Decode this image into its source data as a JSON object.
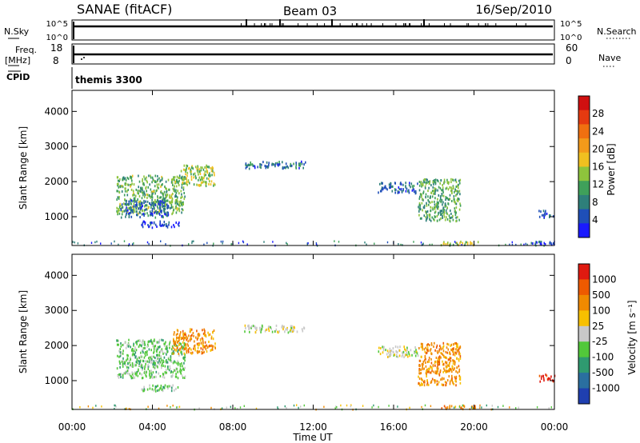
{
  "header": {
    "station": "SANAE (fitACF)",
    "beam": "Beam 03",
    "date": "16/Sep/2010"
  },
  "strips": {
    "nsky_label": "N.Sky",
    "nsky_ticks": [
      "10^5",
      "10^0"
    ],
    "nsearch_label": "N.Search",
    "nsearch_ticks": [
      "10^5",
      "10^0"
    ],
    "freq_label_line1": "Freq.",
    "freq_label_line2": "[MHz]",
    "freq_ticks": [
      "18",
      "8"
    ],
    "nave_label": "Nave",
    "nave_ticks": [
      "60",
      "0"
    ],
    "cpid_label": "CPID",
    "cpid_value": "themis 3300"
  },
  "colors": {
    "power_scale": [
      "#1a1aff",
      "#1f4fb8",
      "#2e7f7a",
      "#3fa05a",
      "#8ec43c",
      "#f0c020",
      "#f39a1a",
      "#f07010",
      "#e53a10",
      "#d01010"
    ],
    "velocity_scale": [
      "#1f3fb0",
      "#2a6fa0",
      "#2f9a70",
      "#52c83a",
      "#c8c8c8",
      "#f7c000",
      "#f08a00",
      "#ee5a00",
      "#e01a10"
    ]
  },
  "chart_data": [
    {
      "type": "heatmap",
      "name": "power",
      "ylabel": "Slant Range [km]",
      "xlabel": "Time UT",
      "y_ticks": [
        "4000",
        "3000",
        "2000",
        "1000"
      ],
      "x_ticks": [
        "00:00",
        "04:00",
        "08:00",
        "12:00",
        "16:00",
        "20:00",
        "00:00"
      ],
      "x_range_hours": [
        0,
        24
      ],
      "y_range_km": [
        180,
        4600
      ],
      "colorbar_title": "Power [dB]",
      "colorbar_ticks": [
        "28",
        "24",
        "20",
        "16",
        "12",
        "8",
        "4"
      ],
      "colorbar_range": [
        0,
        30
      ],
      "regions": [
        {
          "t": [
            2.2,
            5.6
          ],
          "r": [
            1100,
            2200
          ],
          "value": 11
        },
        {
          "t": [
            2.4,
            4.8
          ],
          "r": [
            1000,
            1500
          ],
          "value": 5
        },
        {
          "t": [
            5.4,
            7.1
          ],
          "r": [
            1900,
            2500
          ],
          "value": 13
        },
        {
          "t": [
            3.4,
            5.3
          ],
          "r": [
            720,
            900
          ],
          "value": 3
        },
        {
          "t": [
            8.5,
            11.6
          ],
          "r": [
            2400,
            2600
          ],
          "value": 6
        },
        {
          "t": [
            15.2,
            17.2
          ],
          "r": [
            1700,
            2000
          ],
          "value": 5
        },
        {
          "t": [
            17.2,
            19.3
          ],
          "r": [
            900,
            2100
          ],
          "value": 10
        },
        {
          "t": [
            18.3,
            20.3
          ],
          "r": [
            220,
            320
          ],
          "value": 14
        },
        {
          "t": [
            22.8,
            24.0
          ],
          "r": [
            230,
            330
          ],
          "value": 4
        },
        {
          "t": [
            23.2,
            24.0
          ],
          "r": [
            1000,
            1200
          ],
          "value": 5
        }
      ]
    },
    {
      "type": "heatmap",
      "name": "velocity",
      "ylabel": "Slant Range [km]",
      "xlabel": "Time UT",
      "y_ticks": [
        "4000",
        "3000",
        "2000",
        "1000"
      ],
      "x_ticks": [
        "00:00",
        "04:00",
        "08:00",
        "12:00",
        "16:00",
        "20:00",
        "00:00"
      ],
      "x_range_hours": [
        0,
        24
      ],
      "y_range_km": [
        180,
        4600
      ],
      "colorbar_title": "Velocity [m s⁻¹]",
      "colorbar_ticks": [
        "1000",
        "500",
        "100",
        "25",
        "-25",
        "-100",
        "-500",
        "-1000"
      ],
      "regions": [
        {
          "t": [
            2.2,
            5.6
          ],
          "r": [
            1100,
            2200
          ],
          "value": 3
        },
        {
          "t": [
            5.0,
            7.1
          ],
          "r": [
            1800,
            2500
          ],
          "value": 6
        },
        {
          "t": [
            3.4,
            5.3
          ],
          "r": [
            720,
            900
          ],
          "value": 3
        },
        {
          "t": [
            8.5,
            11.6
          ],
          "r": [
            2400,
            2600
          ],
          "value": 4
        },
        {
          "t": [
            15.2,
            17.2
          ],
          "r": [
            1700,
            2000
          ],
          "value": 4
        },
        {
          "t": [
            17.2,
            19.3
          ],
          "r": [
            900,
            2100
          ],
          "value": 6
        },
        {
          "t": [
            18.3,
            20.3
          ],
          "r": [
            220,
            320
          ],
          "value": 6
        },
        {
          "t": [
            23.2,
            24.0
          ],
          "r": [
            1000,
            1200
          ],
          "value": 8
        }
      ]
    }
  ]
}
